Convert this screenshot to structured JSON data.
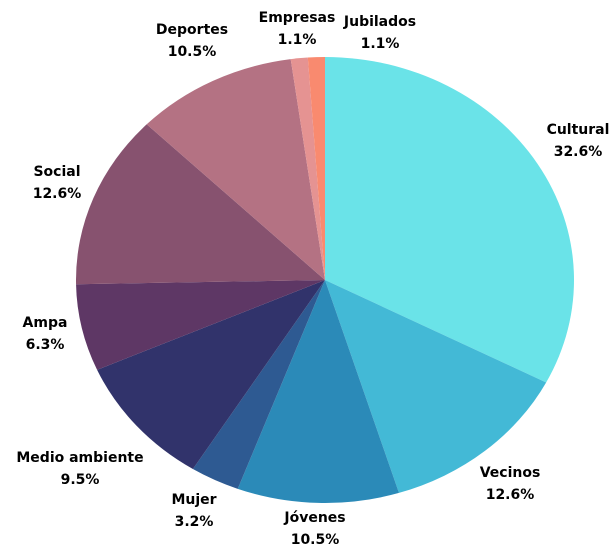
{
  "chart_data": {
    "type": "pie",
    "categories": [
      "Cultural",
      "Vecinos",
      "Jóvenes",
      "Mujer",
      "Medio ambiente",
      "Ampa",
      "Social",
      "Deportes",
      "Empresas",
      "Jubilados"
    ],
    "values": [
      32.6,
      12.6,
      10.5,
      3.2,
      9.5,
      6.3,
      12.6,
      10.5,
      1.1,
      1.1
    ],
    "value_labels": [
      "32.6%",
      "12.6%",
      "10.5%",
      "3.2%",
      "9.5%",
      "6.3%",
      "12.6%",
      "10.5%",
      "1.1%",
      "1.1%"
    ],
    "colors": [
      "#6ae3e8",
      "#43b9d6",
      "#2b8ab8",
      "#2e5a92",
      "#31336b",
      "#5e3765",
      "#87526f",
      "#b47283",
      "#e59392",
      "#f98a6f"
    ]
  }
}
